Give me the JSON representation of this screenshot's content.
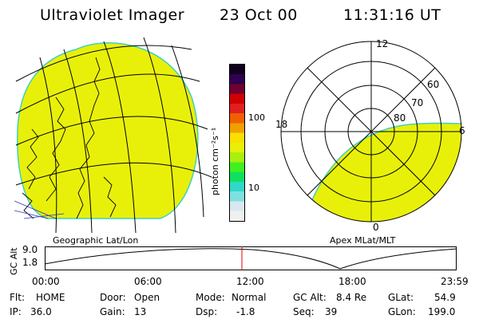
{
  "header": {
    "instrument": "Ultraviolet Imager",
    "date": "23 Oct 00",
    "time": "11:31:16 UT"
  },
  "geo_panel": {
    "caption": "Geographic Lat/Lon",
    "fill_color": "#e8f00a"
  },
  "colorbar": {
    "unit": "photon cm⁻²s⁻¹",
    "ticks": [
      "100",
      "10"
    ],
    "colors": [
      "#f0f0f0",
      "#d8e8ee",
      "#7fe0e0",
      "#30d8c8",
      "#10e060",
      "#40f020",
      "#a8f010",
      "#e8f00a",
      "#f8e000",
      "#f0a000",
      "#f06000",
      "#e02020",
      "#d00000",
      "#700030",
      "#300050",
      "#100020"
    ]
  },
  "polar_panel": {
    "caption": "Apex MLat/MLT",
    "mlt_labels": {
      "top": "12",
      "left": "18",
      "right": "6",
      "bottom": "0"
    },
    "mlat_labels": [
      "60",
      "70",
      "80"
    ]
  },
  "alt_strip": {
    "ylabel": "GC Alt",
    "y_ticks": [
      "9.0",
      "1.8"
    ],
    "x_ticks": [
      "00:00",
      "06:00",
      "12:00",
      "18:00",
      "23:59"
    ],
    "current_time_marker": "11:31",
    "marker_color": "#e00000"
  },
  "status": {
    "flt_label": "Flt:",
    "flt_value": "HOME",
    "ip_label": "IP:",
    "ip_value": "36.0",
    "door_label": "Door:",
    "door_value": "Open",
    "gain_label": "Gain:",
    "gain_value": "13",
    "mode_label": "Mode:",
    "mode_value": "Normal",
    "dsp_label": "Dsp:",
    "dsp_value": "-1.8",
    "gcalt_label": "GC Alt:",
    "gcalt_value": "8.4 Re",
    "seq_label": "Seq:",
    "seq_value": "39",
    "glat_label": "GLat:",
    "glat_value": "54.9",
    "glon_label": "GLon:",
    "glon_value": "199.0"
  }
}
